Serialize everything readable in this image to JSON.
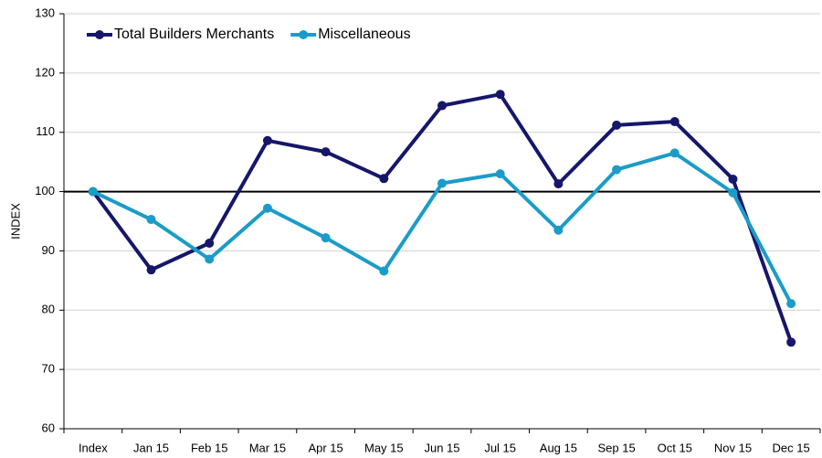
{
  "chart_data": {
    "type": "line",
    "y_axis_label": "INDEX",
    "categories": [
      "Index",
      "Jan 15",
      "Feb 15",
      "Mar 15",
      "Apr 15",
      "May 15",
      "Jun 15",
      "Jul 15",
      "Aug 15",
      "Sep 15",
      "Oct 15",
      "Nov 15",
      "Dec 15"
    ],
    "series": [
      {
        "name": "Total Builders Merchants",
        "color": "#16166b",
        "values": [
          100,
          86.8,
          91.3,
          108.6,
          106.7,
          102.2,
          114.5,
          116.4,
          101.3,
          111.2,
          111.8,
          102.1,
          74.6
        ]
      },
      {
        "name": "Miscellaneous",
        "color": "#1b9cc8",
        "values": [
          100,
          95.3,
          88.6,
          97.2,
          92.2,
          86.6,
          101.4,
          103.0,
          93.5,
          103.7,
          106.5,
          99.8,
          81.1
        ]
      }
    ],
    "reference_line": 100,
    "ylim": [
      60,
      130
    ],
    "yticks": [
      60,
      70,
      80,
      90,
      100,
      110,
      120,
      130
    ],
    "grid": true,
    "legend": "top-left"
  }
}
